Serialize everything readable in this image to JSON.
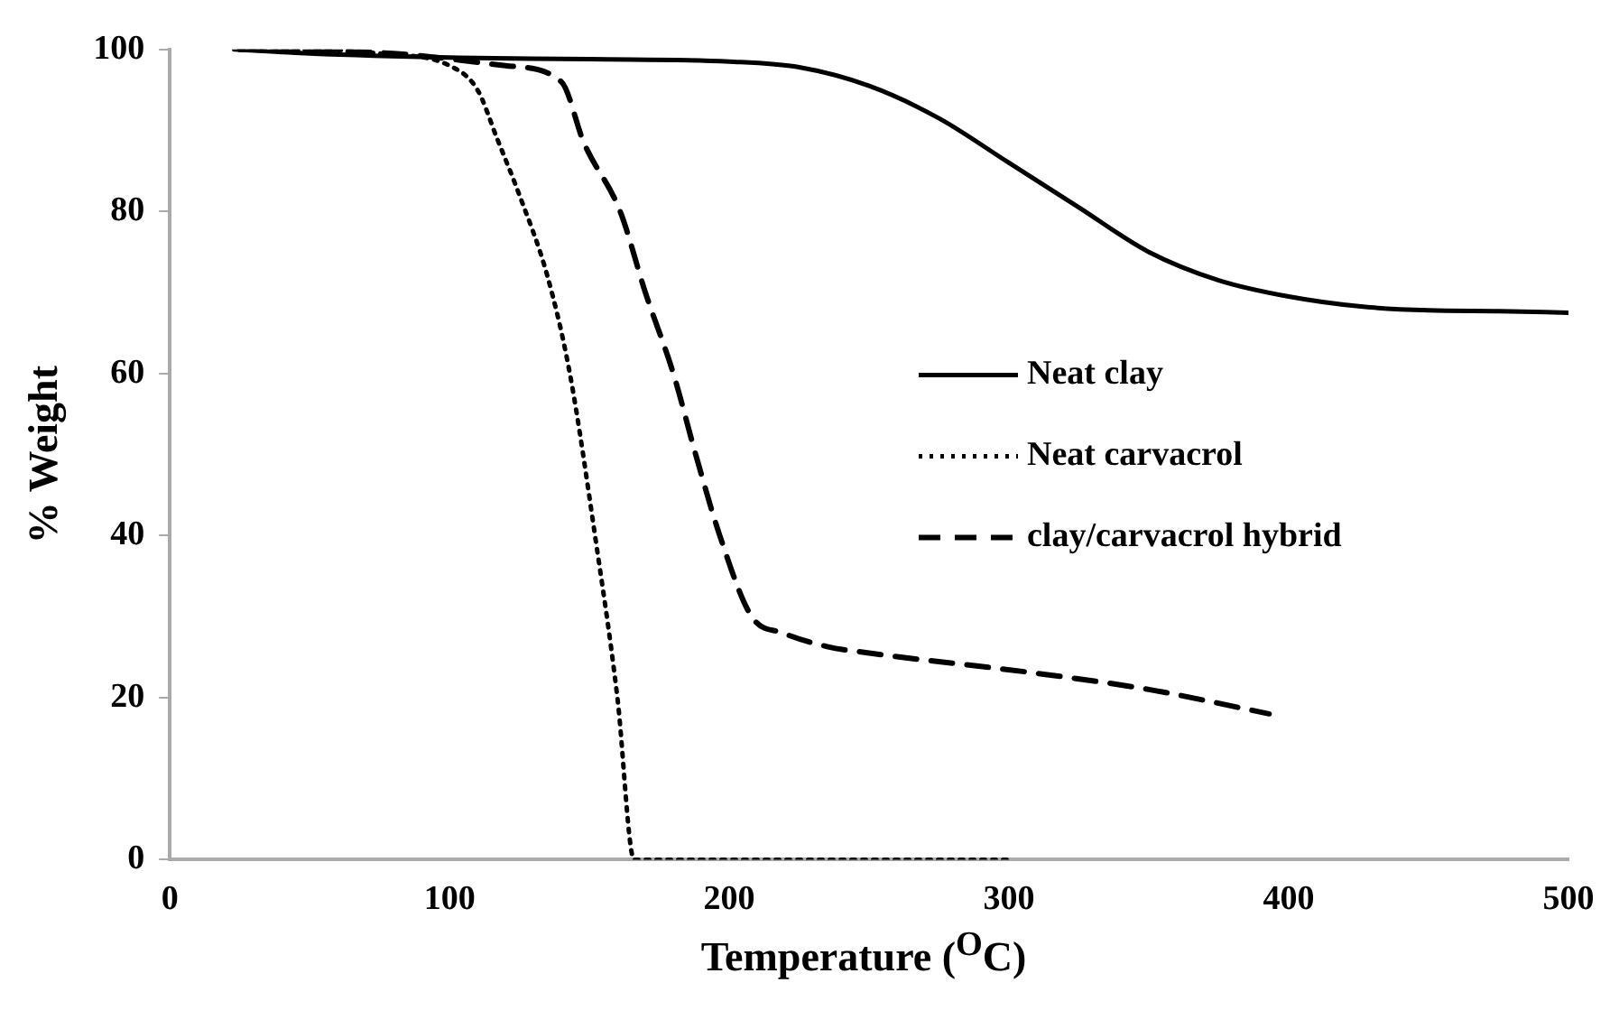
{
  "chart_data": {
    "type": "line",
    "xlabel": "Temperature ($^{O}$C)",
    "ylabel": "% Weight",
    "xlim": [
      0,
      500
    ],
    "xticks": [
      0,
      100,
      200,
      300,
      400,
      500
    ],
    "ylim": [
      0,
      100
    ],
    "yticks": [
      0,
      20,
      40,
      60,
      80,
      100
    ],
    "grid": false,
    "legend": "right",
    "marker": "none",
    "series": [
      {
        "name": "Neat clay",
        "color": "#000000",
        "line_style": "solid",
        "x": [
          23,
          50,
          100,
          150,
          200,
          225,
          250,
          275,
          300,
          325,
          350,
          375,
          400,
          425,
          450,
          475,
          500
        ],
        "values": [
          100,
          99.5,
          99,
          98.8,
          98.5,
          97.8,
          95.5,
          91.5,
          86,
          80.5,
          75,
          71.5,
          69.5,
          68.3,
          67.8,
          67.7,
          67.5
        ]
      },
      {
        "name": "Neat carvacrol",
        "color": "#000000",
        "line_style": "dotted",
        "x": [
          25,
          50,
          75,
          100,
          110,
          117,
          125,
          135,
          143,
          152,
          160,
          166,
          300
        ],
        "values": [
          100,
          100,
          99.5,
          98,
          95,
          89,
          82,
          72,
          60,
          40,
          20,
          0,
          0
        ]
      },
      {
        "name": "clay/carvacrol hybrid",
        "color": "#000000",
        "line_style": "dashed",
        "x": [
          25,
          80,
          120,
          140,
          148,
          161,
          170,
          180,
          188,
          196.6,
          208,
          219,
          235,
          250,
          310,
          350,
          393
        ],
        "values": [
          100,
          99.5,
          98,
          96,
          88.5,
          80,
          70,
          60,
          50,
          40,
          30,
          28,
          26.3,
          25.5,
          23,
          21,
          18
        ]
      }
    ]
  }
}
